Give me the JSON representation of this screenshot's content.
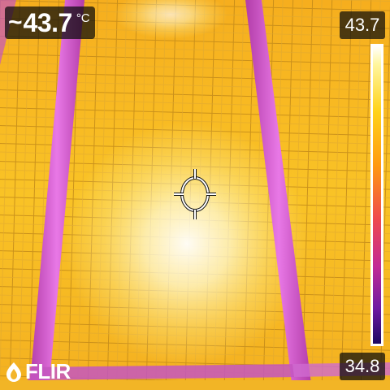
{
  "measurement": {
    "approx_symbol": "~",
    "spot_temp": "43.7",
    "unit": "°C"
  },
  "scale": {
    "max": "43.7",
    "min": "34.8",
    "palette": "iron",
    "colors": [
      "#ffffff",
      "#fff6a0",
      "#ffd21a",
      "#ff9a10",
      "#ef4a4c",
      "#c22a95",
      "#6e1aa2",
      "#1c0a63"
    ]
  },
  "logo": {
    "text": "FLIR"
  },
  "icons": {
    "spot_marker": "crosshair-circle-icon",
    "logo_mark": "flame-icon"
  }
}
